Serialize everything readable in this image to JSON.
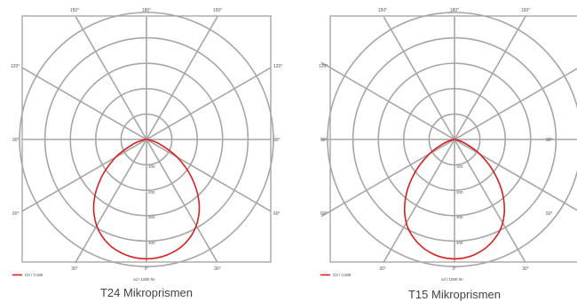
{
  "chart_data": [
    {
      "type": "polar",
      "title": "T24 Mikroprismen",
      "unit_label": "cd / 1000 lm",
      "legend": [
        {
          "name": "C0 / C180",
          "color": "#d81e1e"
        }
      ],
      "angle_labels": {
        "top": [
          "150°",
          "180°",
          "150°"
        ],
        "upper_sides": [
          "120°",
          "120°"
        ],
        "middle_sides": [
          "90°",
          "90°"
        ],
        "lower_sides": [
          "60°",
          "60°"
        ],
        "bottom": [
          "30°",
          "0°",
          "30°"
        ]
      },
      "ring_labels": [
        "100",
        "200",
        "300",
        "400"
      ],
      "ring_max": 500,
      "series": [
        {
          "name": "C0 / C180",
          "angles_deg": [
            0,
            10,
            20,
            30,
            40,
            50,
            60,
            70,
            80,
            90
          ],
          "values": [
            470,
            462,
            438,
            392,
            322,
            232,
            140,
            60,
            14,
            0
          ]
        }
      ]
    },
    {
      "type": "polar",
      "title": "T15 Mikroprismen",
      "unit_label": "cd / 1000 lm",
      "legend": [
        {
          "name": "C0 / C180",
          "color": "#d81e1e"
        }
      ],
      "angle_labels": {
        "top": [
          "150°",
          "180°",
          "150°"
        ],
        "upper_sides": [
          "120°",
          ""
        ],
        "middle_sides": [
          "90°",
          "90°"
        ],
        "lower_sides": [
          "60°",
          "60°"
        ],
        "bottom": [
          "30°",
          "0°",
          "30°"
        ]
      },
      "ring_labels": [
        "100",
        "200",
        "300",
        "400"
      ],
      "ring_max": 500,
      "series": [
        {
          "name": "C0 / C180",
          "angles_deg": [
            0,
            10,
            20,
            30,
            40,
            50,
            60,
            70,
            80,
            90
          ],
          "values": [
            470,
            460,
            430,
            380,
            300,
            205,
            115,
            45,
            10,
            0
          ]
        }
      ]
    }
  ]
}
